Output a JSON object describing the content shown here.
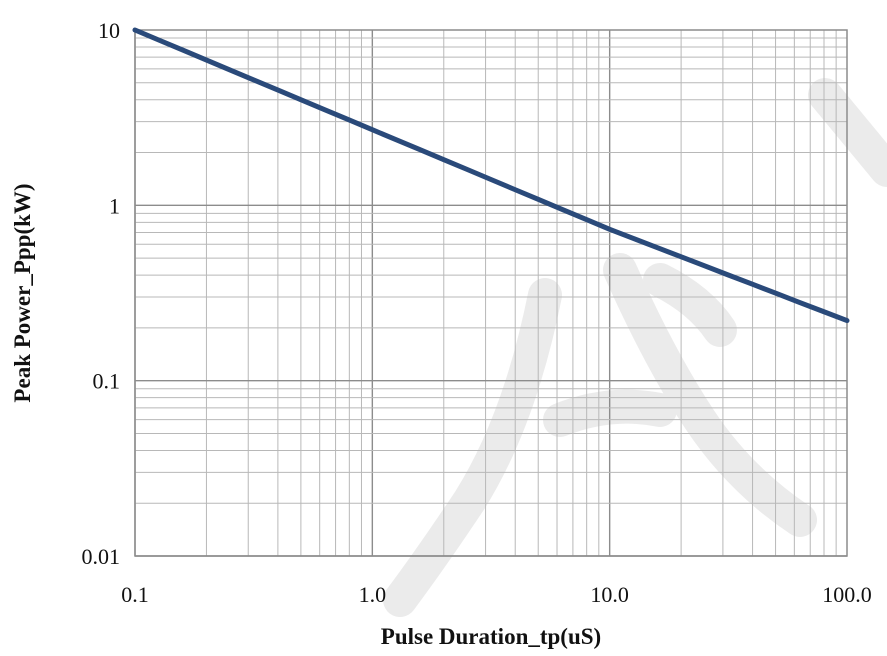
{
  "chart_data": {
    "type": "line",
    "title": "",
    "xlabel": "Pulse Duration_tp(uS)",
    "ylabel": "Peak Power_Ppp(kW)",
    "x_scale": "log",
    "y_scale": "log",
    "xlim": [
      0.1,
      100.0
    ],
    "ylim": [
      0.01,
      10
    ],
    "x_ticks": [
      "0.1",
      "1.0",
      "10.0",
      "100.0"
    ],
    "y_ticks": [
      "10",
      "1",
      "0.1",
      "0.01"
    ],
    "grid": true,
    "legend": "none",
    "series": [
      {
        "color": "#2a4a7a",
        "x": [
          0.1,
          1.0,
          10.0,
          100.0
        ],
        "y": [
          10,
          2.7,
          0.73,
          0.22
        ]
      }
    ]
  }
}
